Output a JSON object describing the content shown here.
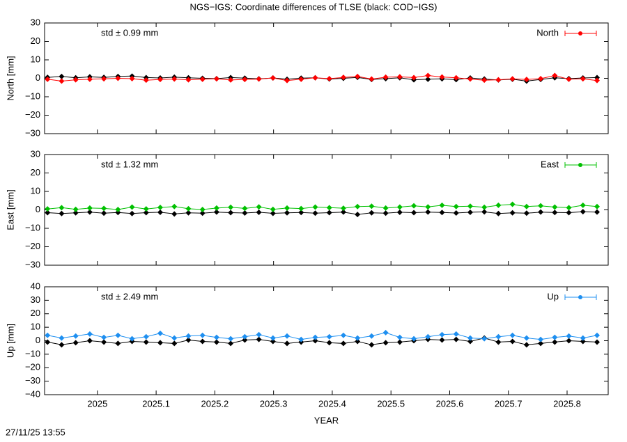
{
  "title": "NGS−IGS: Coordinate differences of TLSE (black: COD−IGS)",
  "footer": "27/11/25 13:55",
  "chart_data": [
    {
      "type": "line",
      "ylabel": "North [mm]",
      "annotation": "std ± 0.99 mm",
      "xlim": [
        2024.91,
        2025.87
      ],
      "xticks": [
        2025,
        2025.1,
        2025.2,
        2025.3,
        2025.4,
        2025.5,
        2025.6,
        2025.7,
        2025.8
      ],
      "ylim": [
        -30,
        30
      ],
      "yticks": [
        {
          "value": -30,
          "label": "−30"
        },
        {
          "value": -20,
          "label": "−20"
        },
        {
          "value": -10,
          "label": "−10"
        },
        0,
        10,
        20,
        30
      ],
      "x": [
        2024.915,
        2024.939,
        2024.963,
        2024.987,
        2025.011,
        2025.035,
        2025.059,
        2025.083,
        2025.107,
        2025.131,
        2025.155,
        2025.179,
        2025.203,
        2025.227,
        2025.251,
        2025.275,
        2025.299,
        2025.323,
        2025.347,
        2025.371,
        2025.395,
        2025.419,
        2025.443,
        2025.467,
        2025.491,
        2025.515,
        2025.539,
        2025.563,
        2025.587,
        2025.611,
        2025.635,
        2025.659,
        2025.683,
        2025.707,
        2025.731,
        2025.755,
        2025.779,
        2025.803,
        2025.827,
        2025.851
      ],
      "series": [
        {
          "color": "#000000",
          "values": [
            0.5,
            1,
            0.3,
            0.8,
            0.5,
            1,
            1.2,
            0.4,
            0.2,
            0.6,
            0.3,
            0,
            -0.2,
            0.4,
            0.1,
            -0.3,
            0.2,
            -0.5,
            0.1,
            0.3,
            -0.4,
            0,
            0.5,
            -0.6,
            -0.2,
            0.3,
            -0.8,
            -0.5,
            -0.3,
            -0.7,
            0.2,
            -0.4,
            -0.9,
            -0.5,
            -1.5,
            -0.6,
            0.3,
            -0.2,
            0.2,
            0.4
          ]
        },
        {
          "name": "North",
          "color": "#ff0000",
          "values": [
            -0.5,
            -1.5,
            -0.8,
            -0.5,
            -0.3,
            0,
            -0.2,
            -1,
            -0.6,
            -0.4,
            -0.8,
            -0.5,
            -0.3,
            -0.9,
            -0.6,
            -0.4,
            0.2,
            -1.2,
            -0.5,
            0.3,
            -0.2,
            0.5,
            1,
            -0.4,
            0.6,
            0.8,
            0.4,
            1.5,
            0.7,
            0.3,
            -0.4,
            -1,
            -0.8,
            -0.3,
            -0.6,
            -0.2,
            1.5,
            -0.5,
            -0.3,
            -1.2
          ]
        }
      ]
    },
    {
      "type": "line",
      "ylabel": "East [mm]",
      "annotation": "std ± 1.32 mm",
      "xlim": [
        2024.91,
        2025.87
      ],
      "xticks": [
        2025,
        2025.1,
        2025.2,
        2025.3,
        2025.4,
        2025.5,
        2025.6,
        2025.7,
        2025.8
      ],
      "ylim": [
        -30,
        30
      ],
      "yticks": [
        {
          "value": -30,
          "label": "−30"
        },
        {
          "value": -20,
          "label": "−20"
        },
        {
          "value": -10,
          "label": "−10"
        },
        0,
        10,
        20,
        30
      ],
      "x": [
        2024.915,
        2024.939,
        2024.963,
        2024.987,
        2025.011,
        2025.035,
        2025.059,
        2025.083,
        2025.107,
        2025.131,
        2025.155,
        2025.179,
        2025.203,
        2025.227,
        2025.251,
        2025.275,
        2025.299,
        2025.323,
        2025.347,
        2025.371,
        2025.395,
        2025.419,
        2025.443,
        2025.467,
        2025.491,
        2025.515,
        2025.539,
        2025.563,
        2025.587,
        2025.611,
        2025.635,
        2025.659,
        2025.683,
        2025.707,
        2025.731,
        2025.755,
        2025.779,
        2025.803,
        2025.827,
        2025.851
      ],
      "series": [
        {
          "color": "#000000",
          "values": [
            -1.5,
            -2,
            -1.6,
            -1.2,
            -1.8,
            -1.4,
            -2,
            -1.5,
            -1.3,
            -2.2,
            -1.6,
            -1.8,
            -1.2,
            -1.5,
            -1.7,
            -1.3,
            -1.9,
            -1.6,
            -1.4,
            -1.8,
            -1.5,
            -1.2,
            -2.5,
            -1.6,
            -1.8,
            -1.3,
            -1.5,
            -1.2,
            -1.4,
            -1.7,
            -1.3,
            -1.1,
            -2,
            -1.6,
            -1.8,
            -1.2,
            -1.4,
            -1.5,
            -1,
            -1.2
          ]
        },
        {
          "name": "East",
          "color": "#00c000",
          "values": [
            0.5,
            1.2,
            0.3,
            1,
            0.8,
            0.2,
            1.5,
            0.5,
            1.3,
            1.8,
            0.6,
            0.2,
            1,
            1.4,
            0.8,
            1.6,
            0.3,
            1,
            0.7,
            1.5,
            1.2,
            0.9,
            1.8,
            2,
            1,
            1.5,
            2.2,
            1.6,
            2.5,
            1.8,
            2,
            1.4,
            2.5,
            3,
            1.8,
            2.2,
            1.5,
            1.2,
            2.5,
            1.8
          ]
        }
      ]
    },
    {
      "type": "line",
      "ylabel": "Up [mm]",
      "xlabel": "YEAR",
      "annotation": "std ± 2.49 mm",
      "xlim": [
        2024.91,
        2025.87
      ],
      "xticks": [
        2025,
        2025.1,
        2025.2,
        2025.3,
        2025.4,
        2025.5,
        2025.6,
        2025.7,
        2025.8
      ],
      "ylim": [
        -40,
        40
      ],
      "yticks": [
        {
          "value": -40,
          "label": "−40"
        },
        {
          "value": -30,
          "label": "−30"
        },
        {
          "value": -20,
          "label": "−20"
        },
        {
          "value": -10,
          "label": "−10"
        },
        0,
        10,
        20,
        30,
        40
      ],
      "x": [
        2024.915,
        2024.939,
        2024.963,
        2024.987,
        2025.011,
        2025.035,
        2025.059,
        2025.083,
        2025.107,
        2025.131,
        2025.155,
        2025.179,
        2025.203,
        2025.227,
        2025.251,
        2025.275,
        2025.299,
        2025.323,
        2025.347,
        2025.371,
        2025.395,
        2025.419,
        2025.443,
        2025.467,
        2025.491,
        2025.515,
        2025.539,
        2025.563,
        2025.587,
        2025.611,
        2025.635,
        2025.659,
        2025.683,
        2025.707,
        2025.731,
        2025.755,
        2025.779,
        2025.803,
        2025.827,
        2025.851
      ],
      "series": [
        {
          "color": "#000000",
          "values": [
            -1,
            -3,
            -1.5,
            0,
            -1,
            -2,
            -0.5,
            -1,
            -1.5,
            -2,
            0.5,
            -0.5,
            -1,
            -2,
            0.5,
            1,
            -0.5,
            -2,
            -1,
            0,
            -1.5,
            -2,
            -0.5,
            -3,
            -1.5,
            -1,
            0,
            1,
            0.5,
            1,
            -0.5,
            2,
            -1,
            -0.5,
            -3,
            -2,
            -1,
            0,
            -0.5,
            -1
          ]
        },
        {
          "name": "Up",
          "color": "#1e8ff0",
          "values": [
            4,
            2,
            3.5,
            5,
            2.5,
            4,
            1.5,
            3,
            5.5,
            2,
            3.5,
            4,
            2.5,
            1.5,
            3,
            4.5,
            2,
            3.5,
            1,
            2.5,
            3,
            4,
            2,
            3.5,
            6,
            2.5,
            1.5,
            3,
            4.5,
            5,
            2,
            1.5,
            3,
            4,
            2,
            1,
            2.5,
            3.5,
            2,
            4
          ]
        }
      ]
    }
  ]
}
